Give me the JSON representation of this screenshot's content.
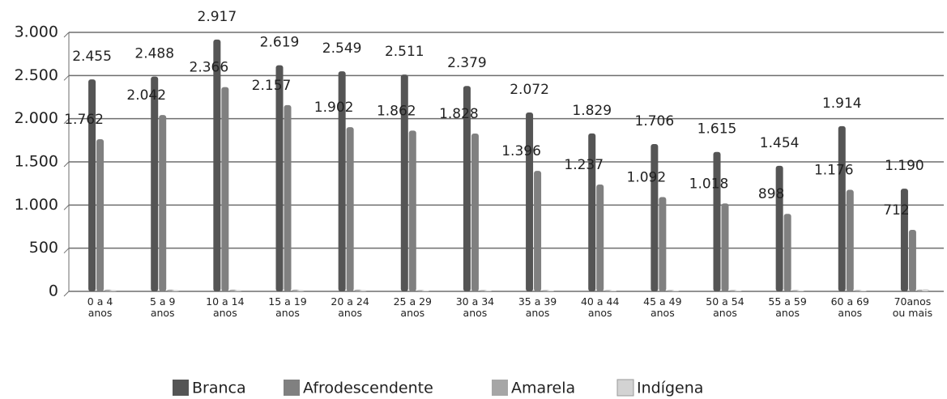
{
  "chart_data": {
    "type": "bar",
    "categories": [
      "0 a 4 anos",
      "5 a 9 anos",
      "10 a 14 anos",
      "15 a 19 anos",
      "20 a 24 anos",
      "25 a 29 anos",
      "30 a 34 anos",
      "35 a 39 anos",
      "40 a 44 anos",
      "45 a 49 anos",
      "50 a 54 anos",
      "55 a 59 anos",
      "60 a 69 anos",
      "70anos ou mais"
    ],
    "series": [
      {
        "name": "Branca",
        "color": "#555555",
        "values": [
          2455,
          2488,
          2917,
          2619,
          2549,
          2511,
          2379,
          2072,
          1829,
          1706,
          1615,
          1454,
          1914,
          1190
        ],
        "value_labels": [
          "2.455",
          "2.488",
          "2.917",
          "2.619",
          "2.549",
          "2.511",
          "2.379",
          "2.072",
          "1.829",
          "1.706",
          "1.615",
          "1.454",
          "1.914",
          "1.190"
        ]
      },
      {
        "name": "Afrodescendente",
        "color": "#808080",
        "values": [
          1762,
          2042,
          2366,
          2157,
          1902,
          1862,
          1828,
          1396,
          1237,
          1092,
          1018,
          898,
          1176,
          712
        ],
        "value_labels": [
          "1.762",
          "2.042",
          "2.366",
          "2.157",
          "1.902",
          "1.862",
          "1.828",
          "1.396",
          "1.237",
          "1.092",
          "1.018",
          "898",
          "1.176",
          "712"
        ]
      },
      {
        "name": "Amarela",
        "color": "#a6a6a6",
        "values": [
          20,
          20,
          20,
          20,
          20,
          15,
          15,
          15,
          15,
          15,
          15,
          15,
          15,
          20
        ]
      },
      {
        "name": "Indígena",
        "color": "#d3d3d3",
        "values": [
          15,
          15,
          15,
          15,
          15,
          10,
          10,
          10,
          10,
          10,
          10,
          10,
          10,
          25
        ]
      }
    ],
    "ylim": [
      0,
      3000
    ],
    "yticks": [
      0,
      500,
      {
        "value": 1000,
        "label": "1.000"
      },
      {
        "value": 1500,
        "label": "1.500"
      },
      {
        "value": 2000,
        "label": "2.000"
      },
      {
        "value": 2500,
        "label": "2.500"
      },
      {
        "value": 3000,
        "label": "3.000"
      }
    ],
    "grid": true,
    "legend": "bottom"
  }
}
